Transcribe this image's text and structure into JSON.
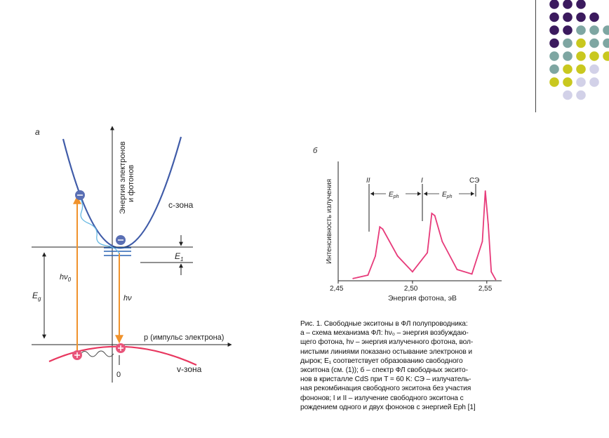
{
  "palette": {
    "purple": "#3b1a5e",
    "teal": "#7ea6a2",
    "olive": "#c9c81f",
    "lavender": "#d2d1e8",
    "conduction_band": "#3f5ba8",
    "valence_band": "#e8375f",
    "photon_arrow": "#f0922c",
    "spectrum_curve": "#e73a7a",
    "exciton_levels": "#2a62b4"
  },
  "diagram_a": {
    "panel_label": "а",
    "y_axis_label_line1": "Энергия электронов",
    "y_axis_label_line2": "и фотонов",
    "conduction_band_label": "с-зона",
    "valence_band_label": "v-зона",
    "x_axis_label": "р (импульс электрона)",
    "bandgap_label": "E",
    "bandgap_sub": "g",
    "excitation_label": "hν",
    "excitation_sub": "0",
    "emission_label": "hν",
    "e1_label": "E",
    "e1_sub": "1",
    "origin_label": "0"
  },
  "diagram_b": {
    "panel_label": "б",
    "y_axis_label": "Интенсивность излучения",
    "x_axis_label": "Энергия фотона, эВ",
    "x_ticks": [
      "2,45",
      "2,50",
      "2,55"
    ],
    "peak_labels": [
      "II",
      "I",
      "СЭ"
    ],
    "eph_label": "E",
    "eph_sub": "ph"
  },
  "chart_data": {
    "type": "line",
    "title": "",
    "xlabel": "Энергия фотона, эВ",
    "ylabel": "Интенсивность излучения",
    "xlim": [
      2.45,
      2.56
    ],
    "x": [
      2.46,
      2.47,
      2.475,
      2.478,
      2.48,
      2.49,
      2.5,
      2.51,
      2.513,
      2.515,
      2.52,
      2.53,
      2.54,
      2.547,
      2.549,
      2.551,
      2.553,
      2.556
    ],
    "series": [
      {
        "values": [
          0.02,
          0.05,
          0.22,
          0.48,
          0.46,
          0.22,
          0.08,
          0.25,
          0.6,
          0.58,
          0.35,
          0.1,
          0.06,
          0.35,
          0.8,
          0.5,
          0.08,
          0.01
        ]
      }
    ],
    "annotations": [
      "II",
      "I",
      "СЭ"
    ]
  },
  "caption": {
    "lines": [
      "Рис. 1. Свободные экситоны в ФЛ полупроводника:",
      "а – схема механизма ФЛ: hν₀ – энергия возбуждаю-",
      "щего фотона, hν – энергия излученного фотона, вол-",
      "нистыми линиями показано остывание электронов и",
      "дырок; E₁ соответствует образованию свободного",
      "экситона (см. (1)); б – спектр ФЛ свободных эксито-",
      "нов в кристалле CdS при T = 60 K: СЭ – излучатель-",
      "ная рекомбинация свободного экситона без участия",
      "фононов; I и II – излучение свободного экситона с",
      "рождением одного и двух фононов с энергией Eph [1]"
    ]
  }
}
